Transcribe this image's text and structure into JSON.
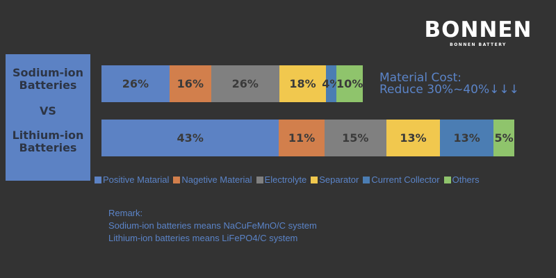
{
  "logo": {
    "main": "BONNEN",
    "sub": "BONNEN BATTERY"
  },
  "side_panel": {
    "line1": "Sodium-ion",
    "line2": "Batteries",
    "vs": "VS",
    "line3": "Lithium-ion",
    "line4": "Batteries"
  },
  "callout": {
    "line1": "Material Cost:",
    "line2": "Reduce 30%~40%↓↓↓"
  },
  "remark": {
    "title": "Remark:",
    "line1": "Sodium-ion batteries means NaCuFeMnO/C system",
    "line2": "Lithium-ion batteries means LiFePO4/C system"
  },
  "chart_data": {
    "type": "bar",
    "orientation": "horizontal-stacked",
    "categories": [
      "Sodium-ion Batteries",
      "Lithium-ion Batteries"
    ],
    "series": [
      {
        "name": "Positive Matarial",
        "color": "#5c82c4",
        "values": [
          26,
          43
        ]
      },
      {
        "name": "Nagetive Material",
        "color": "#d27f4c",
        "values": [
          16,
          11
        ]
      },
      {
        "name": "Electrolyte",
        "color": "#808080",
        "values": [
          26,
          15
        ]
      },
      {
        "name": "Separator",
        "color": "#f1c84e",
        "values": [
          18,
          13
        ]
      },
      {
        "name": "Current Collector",
        "color": "#4b7db3",
        "values": [
          4,
          13
        ]
      },
      {
        "name": "Others",
        "color": "#8fc46c",
        "values": [
          10,
          5
        ]
      }
    ],
    "unit": "%",
    "legend": "bottom",
    "grid": false
  }
}
